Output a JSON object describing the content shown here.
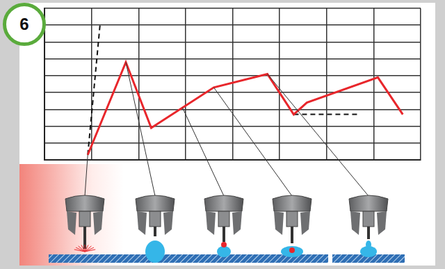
{
  "chart_data": {
    "type": "line",
    "title": "6",
    "series": [
      {
        "color": "#e8262b",
        "line_style": "solid",
        "x": [
          0.92,
          1.73,
          2.27,
          3.6,
          4.74,
          5.3,
          5.58,
          7.09,
          7.62
        ],
        "values": [
          0.3,
          5.8,
          1.9,
          4.3,
          5.1,
          2.7,
          3.4,
          4.9,
          2.7
        ]
      },
      {
        "color": "#111111",
        "line_style": "dashed",
        "x": [
          0.92,
          1.18
        ],
        "values": [
          0.3,
          8.0
        ]
      },
      {
        "color": "#111111",
        "line_style": "dashed",
        "x": [
          5.3,
          6.7
        ],
        "values": [
          2.7,
          2.7
        ]
      }
    ],
    "xlim": [
      0,
      8
    ],
    "xticks": [
      0,
      1,
      2,
      3,
      4,
      5,
      6,
      7,
      8
    ],
    "ylim": [
      0,
      9
    ],
    "yticks": [
      0,
      1,
      2,
      3,
      4,
      5,
      6,
      7,
      8,
      9
    ],
    "grid": true,
    "tick_labels": false
  }
}
